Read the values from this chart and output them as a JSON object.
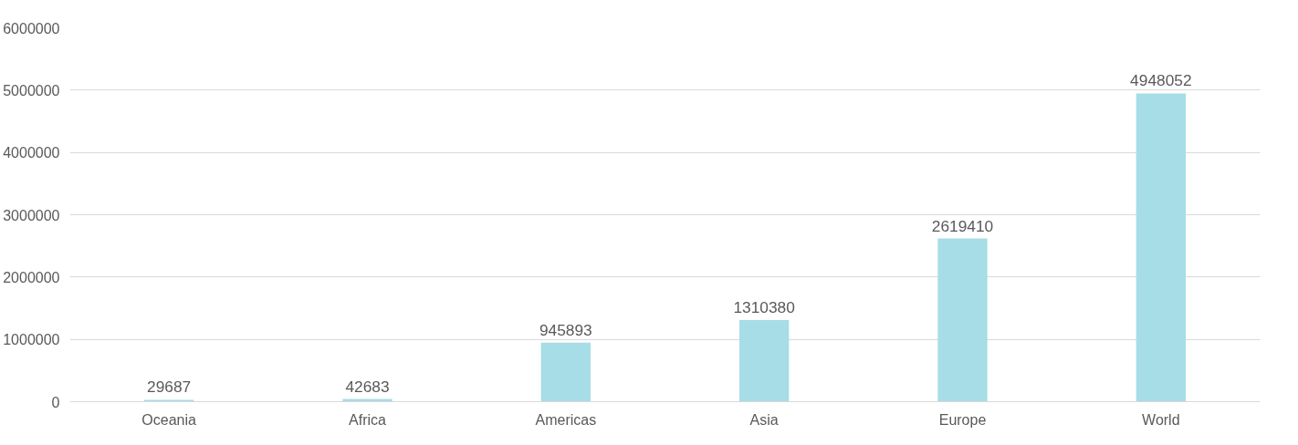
{
  "chart_data": {
    "type": "bar",
    "categories": [
      "Oceania",
      "Africa",
      "Americas",
      "Asia",
      "Europe",
      "World"
    ],
    "values": [
      29687,
      42683,
      945893,
      1310380,
      2619410,
      4948052
    ],
    "color": "#a6dde6",
    "ylim": [
      0,
      6000000
    ],
    "yticks": [
      0,
      1000000,
      2000000,
      3000000,
      4000000,
      5000000,
      6000000
    ],
    "grid": "y",
    "data_labels": true
  }
}
